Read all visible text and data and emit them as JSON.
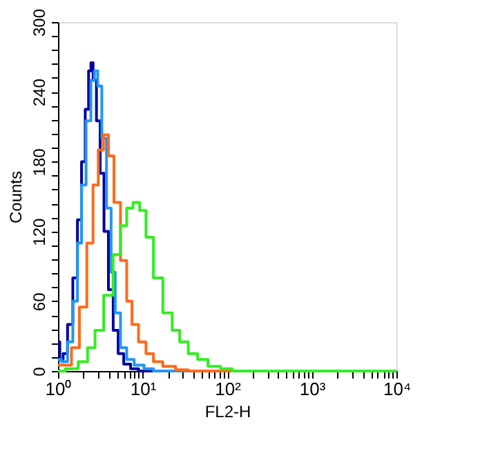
{
  "chart_data": {
    "type": "step",
    "xlabel": "FL2-H",
    "ylabel": "Counts",
    "log": "x",
    "grid": false,
    "xlim": [
      1,
      10000
    ],
    "ylim": [
      0,
      300
    ],
    "xticks": [
      {
        "value": 1,
        "label": "10⁰"
      },
      {
        "value": 2,
        "label": null
      },
      {
        "value": 3,
        "label": null
      },
      {
        "value": 4,
        "label": null
      },
      {
        "value": 5,
        "label": null
      },
      {
        "value": 6,
        "label": null
      },
      {
        "value": 7,
        "label": null
      },
      {
        "value": 8,
        "label": null
      },
      {
        "value": 9,
        "label": null
      },
      {
        "value": 10,
        "label": "10¹"
      },
      {
        "value": 20,
        "label": null
      },
      {
        "value": 30,
        "label": null
      },
      {
        "value": 40,
        "label": null
      },
      {
        "value": 50,
        "label": null
      },
      {
        "value": 60,
        "label": null
      },
      {
        "value": 70,
        "label": null
      },
      {
        "value": 80,
        "label": null
      },
      {
        "value": 90,
        "label": null
      },
      {
        "value": 100,
        "label": "10²"
      },
      {
        "value": 200,
        "label": null
      },
      {
        "value": 300,
        "label": null
      },
      {
        "value": 400,
        "label": null
      },
      {
        "value": 500,
        "label": null
      },
      {
        "value": 600,
        "label": null
      },
      {
        "value": 700,
        "label": null
      },
      {
        "value": 800,
        "label": null
      },
      {
        "value": 900,
        "label": null
      },
      {
        "value": 1000,
        "label": "10³"
      },
      {
        "value": 2000,
        "label": null
      },
      {
        "value": 3000,
        "label": null
      },
      {
        "value": 4000,
        "label": null
      },
      {
        "value": 5000,
        "label": null
      },
      {
        "value": 6000,
        "label": null
      },
      {
        "value": 7000,
        "label": null
      },
      {
        "value": 8000,
        "label": null
      },
      {
        "value": 9000,
        "label": null
      },
      {
        "value": 10000,
        "label": "10⁴"
      }
    ],
    "yticks": [
      0,
      {
        "value": 12,
        "label": null
      },
      {
        "value": 24,
        "label": null
      },
      {
        "value": 36,
        "label": null
      },
      {
        "value": 48,
        "label": null
      },
      60,
      {
        "value": 72,
        "label": null
      },
      {
        "value": 84,
        "label": null
      },
      {
        "value": 96,
        "label": null
      },
      {
        "value": 108,
        "label": null
      },
      120,
      {
        "value": 132,
        "label": null
      },
      {
        "value": 144,
        "label": null
      },
      {
        "value": 156,
        "label": null
      },
      {
        "value": 168,
        "label": null
      },
      180,
      {
        "value": 192,
        "label": null
      },
      {
        "value": 204,
        "label": null
      },
      {
        "value": 216,
        "label": null
      },
      {
        "value": 228,
        "label": null
      },
      240,
      {
        "value": 252,
        "label": null
      },
      {
        "value": 264,
        "label": null
      },
      {
        "value": 276,
        "label": null
      },
      {
        "value": 288,
        "label": null
      },
      300
    ],
    "series": [
      {
        "color": "#0000a0",
        "x": [
          1,
          1.1,
          1.2,
          1.4,
          1.6,
          1.8,
          2.0,
          2.2,
          2.4,
          2.5,
          2.7,
          3.0,
          3.3,
          3.7,
          4.2,
          4.8,
          5.5,
          6.5,
          8,
          10,
          10000
        ],
        "values": [
          25,
          10,
          15,
          40,
          80,
          130,
          180,
          225,
          258,
          265,
          250,
          215,
          170,
          120,
          70,
          35,
          15,
          6,
          2,
          0,
          0
        ]
      },
      {
        "color": "#2196f3",
        "x": [
          1,
          1.2,
          1.4,
          1.6,
          1.8,
          2.0,
          2.3,
          2.6,
          2.8,
          3.1,
          3.5,
          4,
          4.5,
          5,
          6,
          7,
          9,
          12,
          15,
          10000
        ],
        "values": [
          10,
          8,
          25,
          60,
          110,
          160,
          215,
          250,
          258,
          245,
          200,
          140,
          85,
          50,
          20,
          10,
          5,
          2,
          0,
          0
        ]
      },
      {
        "color": "#ff6a1a",
        "x": [
          1,
          1.3,
          1.6,
          2.0,
          2.4,
          2.8,
          3.2,
          3.7,
          4.2,
          5,
          6,
          7,
          8,
          10,
          12,
          15,
          20,
          30,
          40,
          10000
        ],
        "values": [
          5,
          5,
          20,
          55,
          110,
          160,
          190,
          203,
          185,
          145,
          95,
          60,
          40,
          25,
          15,
          8,
          4,
          1,
          0,
          0
        ]
      },
      {
        "color": "#33ee22",
        "x": [
          1,
          1.5,
          2,
          2.5,
          3,
          4,
          5,
          6,
          7,
          8.5,
          10,
          12,
          15,
          20,
          25,
          30,
          40,
          50,
          70,
          100,
          130,
          10000
        ],
        "values": [
          0,
          2,
          8,
          20,
          35,
          65,
          100,
          125,
          140,
          145,
          138,
          115,
          80,
          50,
          35,
          25,
          15,
          10,
          4,
          2,
          0,
          0
        ]
      }
    ]
  }
}
